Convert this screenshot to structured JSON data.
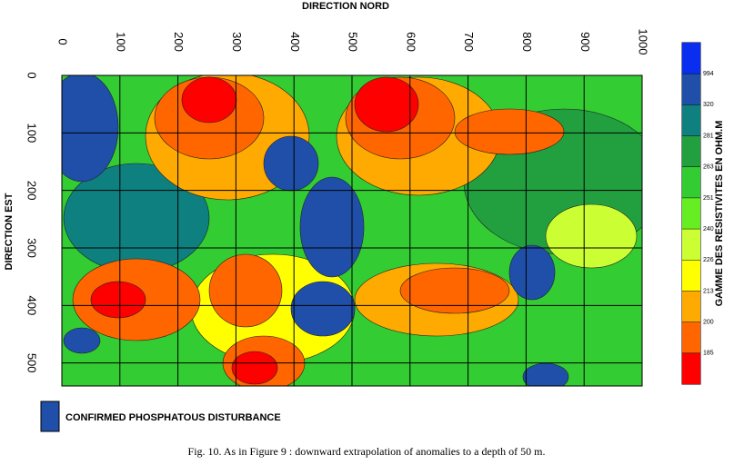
{
  "chart_data": {
    "type": "contour",
    "xlabel": "DIRECTION NORD",
    "ylabel": "DIRECTION EST",
    "xlim": [
      0,
      1000
    ],
    "ylim": [
      0,
      540
    ],
    "xticks": [
      0,
      100,
      200,
      300,
      400,
      500,
      600,
      700,
      800,
      900,
      1000
    ],
    "yticks": [
      0,
      100,
      200,
      300,
      400,
      500
    ],
    "grid": true,
    "colorbar": {
      "label": "GAMME DES RESISTIVITES EN OHM.M",
      "levels": [
        994,
        320,
        281,
        263,
        251,
        240,
        226,
        213,
        200,
        185
      ],
      "colors": [
        "#0a2ef0",
        "#1f4fa8",
        "#0e8080",
        "#22a040",
        "#33cc33",
        "#66ee22",
        "#ccff33",
        "#ffff00",
        "#ffaa00",
        "#ff6600",
        "#ff0000"
      ]
    },
    "legend": "CONFIRMED PHOSPHATOUS DISTURBANCE",
    "caption": "Fig. 10. As in Figure 9 : downward extrapolation of anomalies to a depth of 50 m."
  }
}
